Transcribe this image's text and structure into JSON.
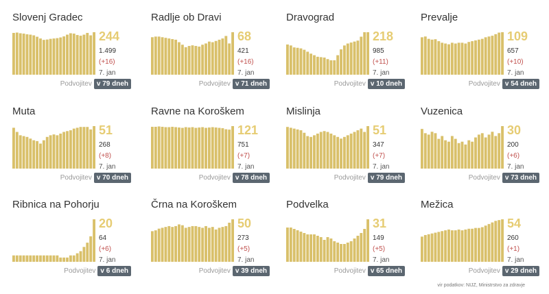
{
  "labels": {
    "doubling": "Podvojitev",
    "date": "7. jan"
  },
  "source": "vir podatkov: NIJZ, Ministrstvo za zdravje",
  "colors": {
    "bar": "#d9c06a",
    "accent": "#e6cc73",
    "delta": "#c0504d",
    "badge": "#5b6670"
  },
  "cards": [
    {
      "name": "Slovenj Gradec",
      "active": "244",
      "total": "1.499",
      "delta": "(+16)",
      "doubling": "v 79 dneh"
    },
    {
      "name": "Radlje ob Dravi",
      "active": "68",
      "total": "421",
      "delta": "(+16)",
      "doubling": "v 71 dneh"
    },
    {
      "name": "Dravograd",
      "active": "218",
      "total": "985",
      "delta": "(+11)",
      "doubling": "v 10 dneh"
    },
    {
      "name": "Prevalje",
      "active": "109",
      "total": "657",
      "delta": "(+10)",
      "doubling": "v 54 dneh"
    },
    {
      "name": "Muta",
      "active": "51",
      "total": "268",
      "delta": "(+8)",
      "doubling": "v 70 dneh"
    },
    {
      "name": "Ravne na Koroškem",
      "active": "121",
      "total": "751",
      "delta": "(+7)",
      "doubling": "v 78 dneh"
    },
    {
      "name": "Mislinja",
      "active": "51",
      "total": "347",
      "delta": "(+7)",
      "doubling": "v 79 dneh"
    },
    {
      "name": "Vuzenica",
      "active": "30",
      "total": "200",
      "delta": "(+6)",
      "doubling": "v 73 dneh"
    },
    {
      "name": "Ribnica na Pohorju",
      "active": "20",
      "total": "64",
      "delta": "(+6)",
      "doubling": "v 6 dneh"
    },
    {
      "name": "Črna na Koroškem",
      "active": "50",
      "total": "273",
      "delta": "(+5)",
      "doubling": "v 39 dneh"
    },
    {
      "name": "Podvelka",
      "active": "31",
      "total": "149",
      "delta": "(+5)",
      "doubling": "v 65 dneh"
    },
    {
      "name": "Mežica",
      "active": "54",
      "total": "260",
      "delta": "(+1)",
      "doubling": "v 29 dneh"
    }
  ],
  "chart_data": [
    {
      "type": "bar",
      "title": "Slovenj Gradec",
      "values": [
        240,
        242,
        238,
        236,
        232,
        230,
        226,
        218,
        208,
        200,
        202,
        206,
        208,
        210,
        214,
        220,
        230,
        238,
        236,
        228,
        224,
        230,
        240,
        226,
        244
      ]
    },
    {
      "type": "bar",
      "title": "Radlje ob Dravi",
      "values": [
        60,
        61,
        61,
        60,
        59,
        58,
        57,
        56,
        52,
        48,
        44,
        46,
        47,
        46,
        45,
        48,
        50,
        53,
        52,
        54,
        56,
        58,
        62,
        50,
        68
      ]
    },
    {
      "type": "bar",
      "title": "Dravograd",
      "values": [
        155,
        150,
        140,
        138,
        135,
        128,
        118,
        108,
        100,
        92,
        90,
        88,
        80,
        74,
        74,
        100,
        130,
        150,
        160,
        165,
        170,
        175,
        195,
        218,
        218
      ]
    },
    {
      "type": "bar",
      "title": "Prevalje",
      "values": [
        96,
        98,
        92,
        90,
        91,
        86,
        82,
        80,
        78,
        82,
        80,
        82,
        82,
        80,
        84,
        86,
        88,
        90,
        92,
        96,
        98,
        100,
        104,
        108,
        109
      ]
    },
    {
      "type": "bar",
      "title": "Muta",
      "values": [
        49,
        44,
        40,
        39,
        38,
        36,
        34,
        33,
        30,
        34,
        38,
        40,
        41,
        40,
        42,
        44,
        45,
        46,
        48,
        49,
        50,
        50,
        50,
        47,
        51
      ]
    },
    {
      "type": "bar",
      "title": "Ravne na Koroškem",
      "values": [
        119,
        119,
        120,
        119,
        118,
        118,
        119,
        118,
        117,
        116,
        118,
        117,
        118,
        116,
        117,
        118,
        116,
        117,
        118,
        117,
        116,
        115,
        112,
        111,
        121
      ]
    },
    {
      "type": "bar",
      "title": "Mislinja",
      "values": [
        50,
        49,
        48,
        47,
        46,
        43,
        39,
        38,
        40,
        42,
        44,
        45,
        44,
        42,
        40,
        38,
        36,
        38,
        40,
        42,
        44,
        46,
        48,
        44,
        51
      ]
    },
    {
      "type": "bar",
      "title": "Vuzenica",
      "values": [
        28,
        25,
        24,
        26,
        25,
        21,
        23,
        20,
        19,
        23,
        21,
        18,
        19,
        17,
        20,
        19,
        22,
        24,
        25,
        22,
        24,
        26,
        23,
        25,
        30
      ]
    },
    {
      "type": "bar",
      "title": "Ribnica na Pohorju",
      "values": [
        3,
        3,
        3,
        3,
        3,
        3,
        3,
        3,
        3,
        3,
        3,
        3,
        3,
        3,
        2,
        2,
        2,
        3,
        3,
        4,
        5,
        7,
        9,
        12,
        20
      ]
    },
    {
      "type": "bar",
      "title": "Črna na Koroškem",
      "values": [
        36,
        37,
        39,
        40,
        41,
        42,
        41,
        42,
        44,
        43,
        40,
        41,
        42,
        42,
        41,
        40,
        42,
        40,
        41,
        38,
        40,
        41,
        42,
        46,
        50
      ]
    },
    {
      "type": "bar",
      "title": "Podvelka",
      "values": [
        25,
        25,
        24,
        23,
        22,
        21,
        20,
        20,
        20,
        19,
        18,
        16,
        18,
        17,
        15,
        14,
        13,
        13,
        14,
        15,
        17,
        19,
        21,
        24,
        31
      ]
    },
    {
      "type": "bar",
      "title": "Mežica",
      "values": [
        32,
        34,
        35,
        36,
        37,
        38,
        39,
        40,
        41,
        40,
        40,
        41,
        40,
        41,
        42,
        42,
        43,
        43,
        44,
        46,
        48,
        50,
        52,
        53,
        54
      ]
    }
  ]
}
